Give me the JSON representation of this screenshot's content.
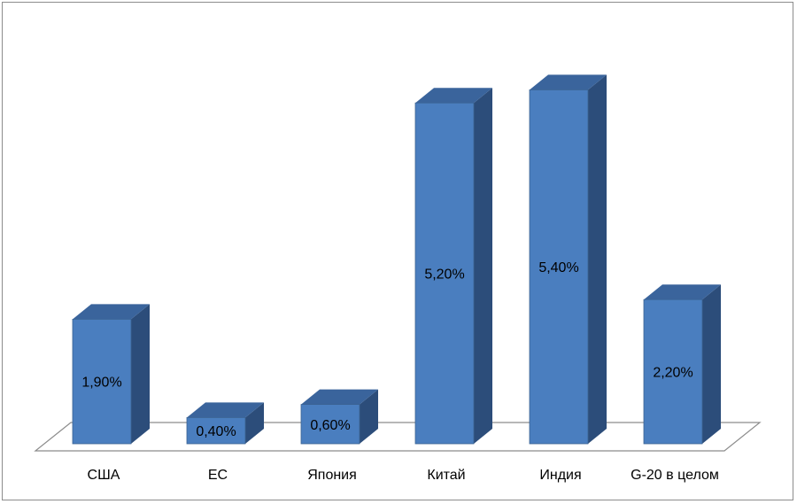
{
  "chart_data": {
    "type": "bar",
    "style": "3d-column",
    "categories": [
      "США",
      "ЕС",
      "Япония",
      "Китай",
      "Индия",
      "G-20 в целом"
    ],
    "values": [
      1.9,
      0.4,
      0.6,
      5.2,
      5.4,
      2.2
    ],
    "value_labels": [
      "1,90%",
      "0,40%",
      "0,60%",
      "5,20%",
      "5,40%",
      "2,20%"
    ],
    "title": "",
    "xlabel": "",
    "ylabel": "",
    "ylim": [
      0,
      5.5
    ],
    "grid": false,
    "legend": "none",
    "colors": {
      "front": "#4a7ebf",
      "side": "#2c4d7a",
      "top": "#3a649c",
      "edge": "#3b6392",
      "floor": "#8c8c8c"
    }
  }
}
